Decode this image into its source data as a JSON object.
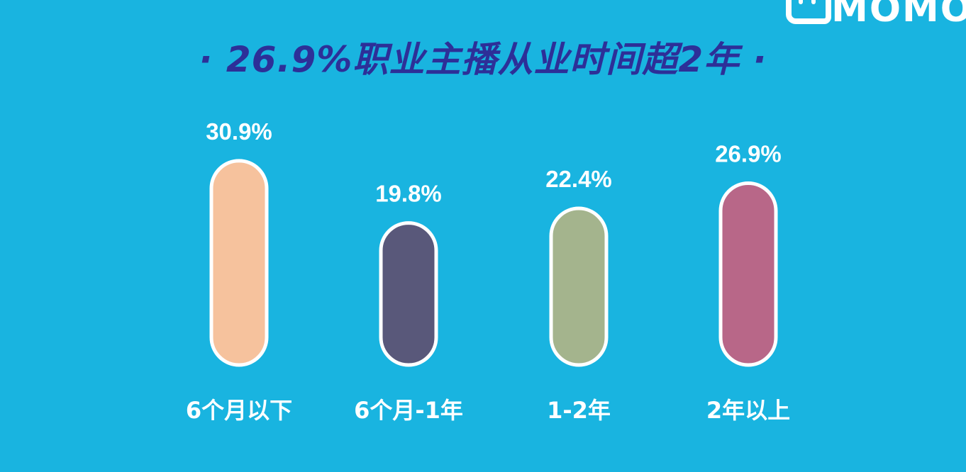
{
  "logo": {
    "text": "MOMO"
  },
  "chart_data": {
    "type": "bar",
    "title": "· 26.9%职业主播从业时间超2年 ·",
    "categories": [
      "6个月以下",
      "6个月-1年",
      "1-2年",
      "2年以上"
    ],
    "values": [
      30.9,
      19.8,
      22.4,
      26.9
    ],
    "data_labels": [
      "30.9%",
      "19.8%",
      "22.4%",
      "26.9%"
    ],
    "colors": [
      "#f6c29d",
      "#59587a",
      "#a4b48d",
      "#b86788"
    ],
    "background": "#19b4e0",
    "grid": false,
    "legend": "none"
  }
}
